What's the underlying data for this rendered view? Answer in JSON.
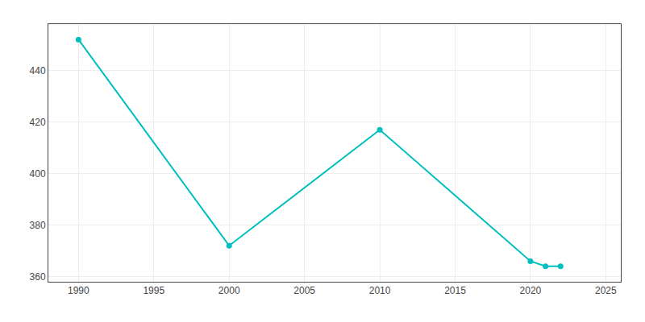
{
  "chart_data": {
    "type": "line",
    "x": [
      1990,
      2000,
      2010,
      2020,
      2021,
      2022
    ],
    "values": [
      452,
      372,
      417,
      366,
      364,
      364
    ],
    "color": "#00BFBF",
    "marker": "circle",
    "xlim": [
      1988,
      2026
    ],
    "ylim": [
      358,
      458
    ],
    "xticks": [
      1990,
      1995,
      2000,
      2005,
      2010,
      2015,
      2020,
      2025
    ],
    "yticks": [
      360,
      380,
      400,
      420,
      440
    ],
    "grid": true
  }
}
